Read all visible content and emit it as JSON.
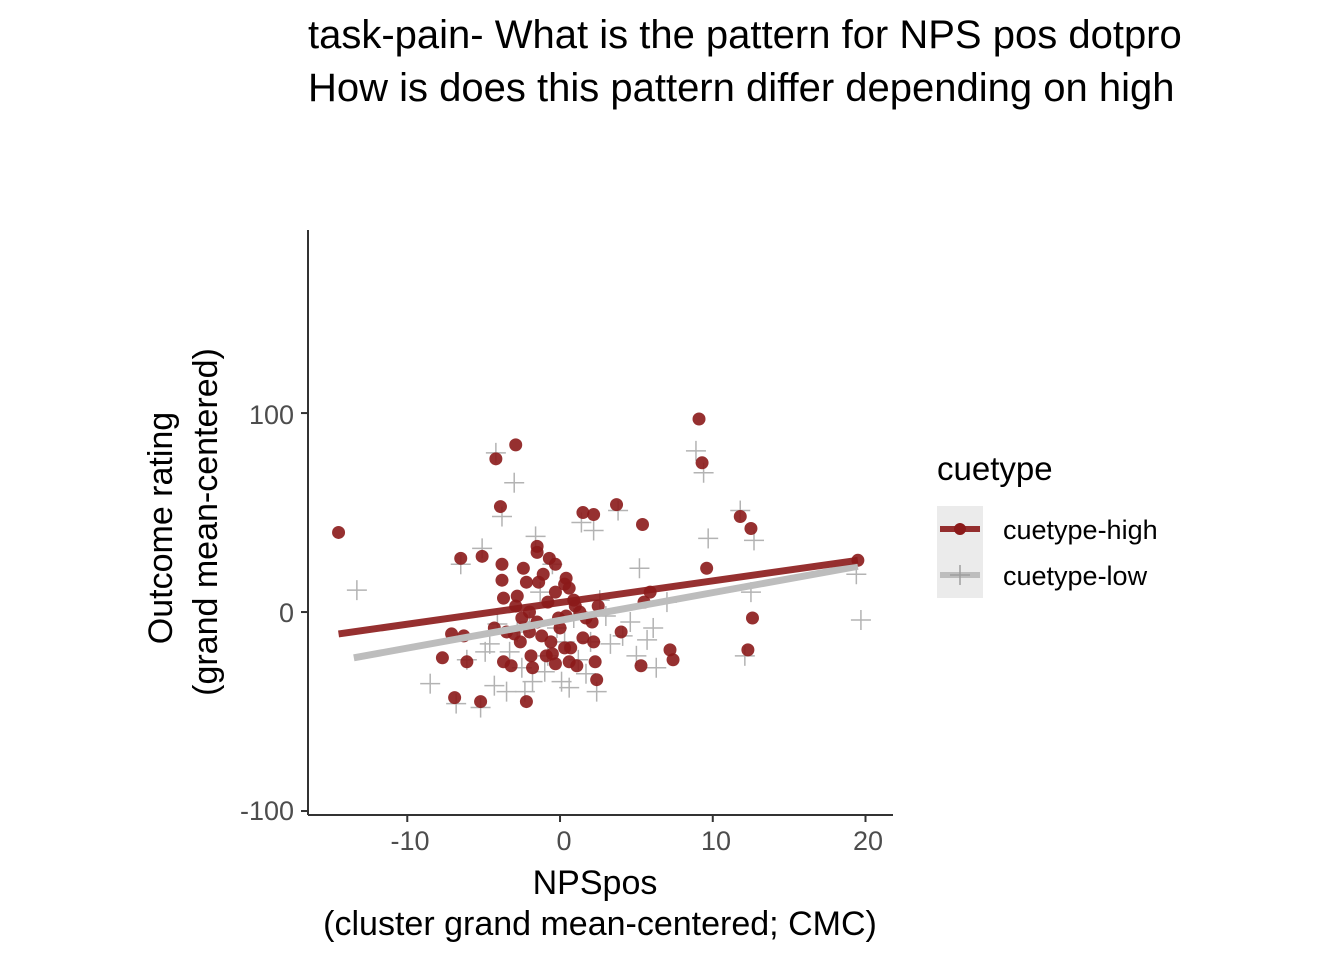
{
  "chart_data": {
    "type": "scatter",
    "title_lines": [
      "task-pain- What is the pattern for NPS pos dotpro",
      "How is does this pattern differ depending on high"
    ],
    "xlabel_lines": [
      "NPSpos",
      "(cluster grand mean-centered; CMC)"
    ],
    "ylabel_lines": [
      "Outcome rating",
      "(grand mean-centered)"
    ],
    "xlim": [
      -16.5,
      21.8
    ],
    "ylim": [
      -102,
      192
    ],
    "xticks": [
      -10,
      0,
      10,
      20
    ],
    "yticks": [
      -100,
      0,
      100
    ],
    "xtick_labels": [
      "-10",
      "0",
      "10",
      "20"
    ],
    "ytick_labels": [
      "-100",
      "0",
      "100"
    ],
    "grid": false,
    "legend": {
      "title": "cuetype",
      "placement": "right",
      "entries": [
        "cuetype-high",
        "cuetype-low"
      ]
    },
    "series": [
      {
        "name": "cuetype-high",
        "color": "#8b1a1a",
        "marker": "circle",
        "fit_line": [
          [
            -14.5,
            -11
          ],
          [
            19.5,
            26
          ]
        ],
        "points": [
          [
            -14.5,
            40
          ],
          [
            -6.5,
            27
          ],
          [
            -5.1,
            28
          ],
          [
            -3.8,
            24
          ],
          [
            -3.8,
            16
          ],
          [
            -3.7,
            7
          ],
          [
            -6.3,
            -12
          ],
          [
            -7.1,
            -11
          ],
          [
            -7.7,
            -23
          ],
          [
            -6.1,
            -25
          ],
          [
            -6.9,
            -43
          ],
          [
            -5.2,
            -45
          ],
          [
            -4.2,
            77
          ],
          [
            -2.9,
            84
          ],
          [
            -3.9,
            53
          ],
          [
            -1.5,
            33
          ],
          [
            -1.5,
            30
          ],
          [
            -1.1,
            19
          ],
          [
            -0.7,
            27
          ],
          [
            -0.3,
            24
          ],
          [
            0.3,
            14
          ],
          [
            0.4,
            17
          ],
          [
            0.6,
            12
          ],
          [
            -1.4,
            15
          ],
          [
            -2.4,
            22
          ],
          [
            -2.2,
            15
          ],
          [
            -2.8,
            8
          ],
          [
            -2.9,
            3
          ],
          [
            -2.5,
            -3
          ],
          [
            -2.0,
            0
          ],
          [
            -0.8,
            5
          ],
          [
            -0.3,
            10
          ],
          [
            -0.1,
            -3
          ],
          [
            0.4,
            -2
          ],
          [
            0.9,
            6
          ],
          [
            1.0,
            3
          ],
          [
            1.3,
            0
          ],
          [
            1.7,
            -3
          ],
          [
            2.1,
            -5
          ],
          [
            2.5,
            3
          ],
          [
            -4.3,
            -8
          ],
          [
            -3.5,
            -10
          ],
          [
            -3.0,
            -11
          ],
          [
            -2.6,
            -15
          ],
          [
            -2.0,
            -10
          ],
          [
            -1.5,
            -5
          ],
          [
            -1.2,
            -12
          ],
          [
            -0.6,
            -15
          ],
          [
            0.0,
            -8
          ],
          [
            0.7,
            -18
          ],
          [
            1.5,
            -13
          ],
          [
            2.2,
            -15
          ],
          [
            -3.7,
            -25
          ],
          [
            -3.2,
            -27
          ],
          [
            -1.9,
            -22
          ],
          [
            -1.8,
            -28
          ],
          [
            -0.9,
            -22
          ],
          [
            -0.3,
            -26
          ],
          [
            0.6,
            -25
          ],
          [
            1.1,
            -27
          ],
          [
            2.3,
            -25
          ],
          [
            2.4,
            -34
          ],
          [
            -2.2,
            -45
          ],
          [
            -0.5,
            -21
          ],
          [
            0.3,
            -18
          ],
          [
            1.5,
            50
          ],
          [
            2.2,
            49
          ],
          [
            3.7,
            54
          ],
          [
            5.4,
            44
          ],
          [
            5.9,
            10
          ],
          [
            5.5,
            5
          ],
          [
            4.0,
            -10
          ],
          [
            5.3,
            -27
          ],
          [
            7.2,
            -19
          ],
          [
            7.4,
            -24
          ],
          [
            9.1,
            97
          ],
          [
            9.3,
            75
          ],
          [
            9.6,
            22
          ],
          [
            11.8,
            48
          ],
          [
            12.5,
            42
          ],
          [
            12.3,
            -19
          ],
          [
            12.6,
            -3
          ],
          [
            19.5,
            26
          ]
        ]
      },
      {
        "name": "cuetype-low",
        "color": "#b3b3b3",
        "marker": "plus",
        "fit_line": [
          [
            -13.5,
            -23
          ],
          [
            19.5,
            23
          ]
        ],
        "points": [
          [
            -13.3,
            11
          ],
          [
            -8.5,
            -36
          ],
          [
            -6.8,
            -46
          ],
          [
            -6.5,
            24
          ],
          [
            -6.1,
            -24
          ],
          [
            -5.2,
            -48
          ],
          [
            -5.1,
            32
          ],
          [
            -4.9,
            -20
          ],
          [
            -4.6,
            -16
          ],
          [
            -4.3,
            -37
          ],
          [
            -4.2,
            80
          ],
          [
            -4.1,
            -6
          ],
          [
            -3.8,
            48
          ],
          [
            -3.5,
            -40
          ],
          [
            -3.3,
            -20
          ],
          [
            -3.0,
            65
          ],
          [
            -2.8,
            -10
          ],
          [
            -2.5,
            -28
          ],
          [
            -2.3,
            -40
          ],
          [
            -2.0,
            -5
          ],
          [
            -1.8,
            -35
          ],
          [
            -1.6,
            38
          ],
          [
            -1.3,
            10
          ],
          [
            -1.0,
            -30
          ],
          [
            -0.8,
            -22
          ],
          [
            -0.5,
            24
          ],
          [
            -0.2,
            -8
          ],
          [
            0.1,
            -35
          ],
          [
            0.3,
            -15
          ],
          [
            0.6,
            -38
          ],
          [
            0.9,
            -3
          ],
          [
            1.2,
            -24
          ],
          [
            1.4,
            45
          ],
          [
            1.7,
            -31
          ],
          [
            2.0,
            -15
          ],
          [
            2.2,
            41
          ],
          [
            2.4,
            -40
          ],
          [
            2.6,
            6
          ],
          [
            3.0,
            -2
          ],
          [
            3.3,
            -16
          ],
          [
            3.8,
            51
          ],
          [
            4.1,
            -12
          ],
          [
            4.6,
            -5
          ],
          [
            5.0,
            -22
          ],
          [
            5.2,
            22
          ],
          [
            5.7,
            -14
          ],
          [
            6.1,
            -8
          ],
          [
            6.3,
            -28
          ],
          [
            7.0,
            5
          ],
          [
            8.9,
            81
          ],
          [
            9.4,
            70
          ],
          [
            9.7,
            37
          ],
          [
            11.8,
            51
          ],
          [
            12.1,
            -22
          ],
          [
            12.5,
            10
          ],
          [
            12.7,
            36
          ],
          [
            19.4,
            19
          ],
          [
            19.7,
            -4
          ]
        ]
      }
    ]
  }
}
